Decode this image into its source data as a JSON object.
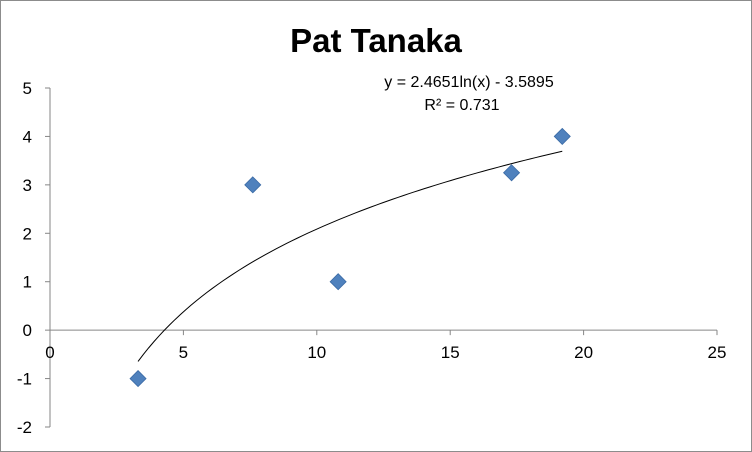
{
  "chart_data": {
    "type": "scatter",
    "title": "Pat Tanaka",
    "xlim": [
      0,
      25
    ],
    "ylim": [
      -2,
      5
    ],
    "x_ticks": [
      0,
      5,
      10,
      15,
      20,
      25
    ],
    "y_ticks": [
      5,
      4,
      3,
      2,
      1,
      0,
      -1,
      -2
    ],
    "grid": false,
    "points": [
      {
        "x": 3.3,
        "y": -1
      },
      {
        "x": 7.6,
        "y": 3
      },
      {
        "x": 10.8,
        "y": 1
      },
      {
        "x": 17.3,
        "y": 3.25
      },
      {
        "x": 19.2,
        "y": 4
      }
    ],
    "marker_color": "#4F81BD",
    "trendline": {
      "type": "logarithmic",
      "a": 2.4651,
      "b": -3.5895,
      "x_start": 3.3,
      "x_end": 19.2,
      "equation_text": "y = 2.4651ln(x) - 3.5895",
      "r2_text": "R² = 0.731"
    }
  }
}
